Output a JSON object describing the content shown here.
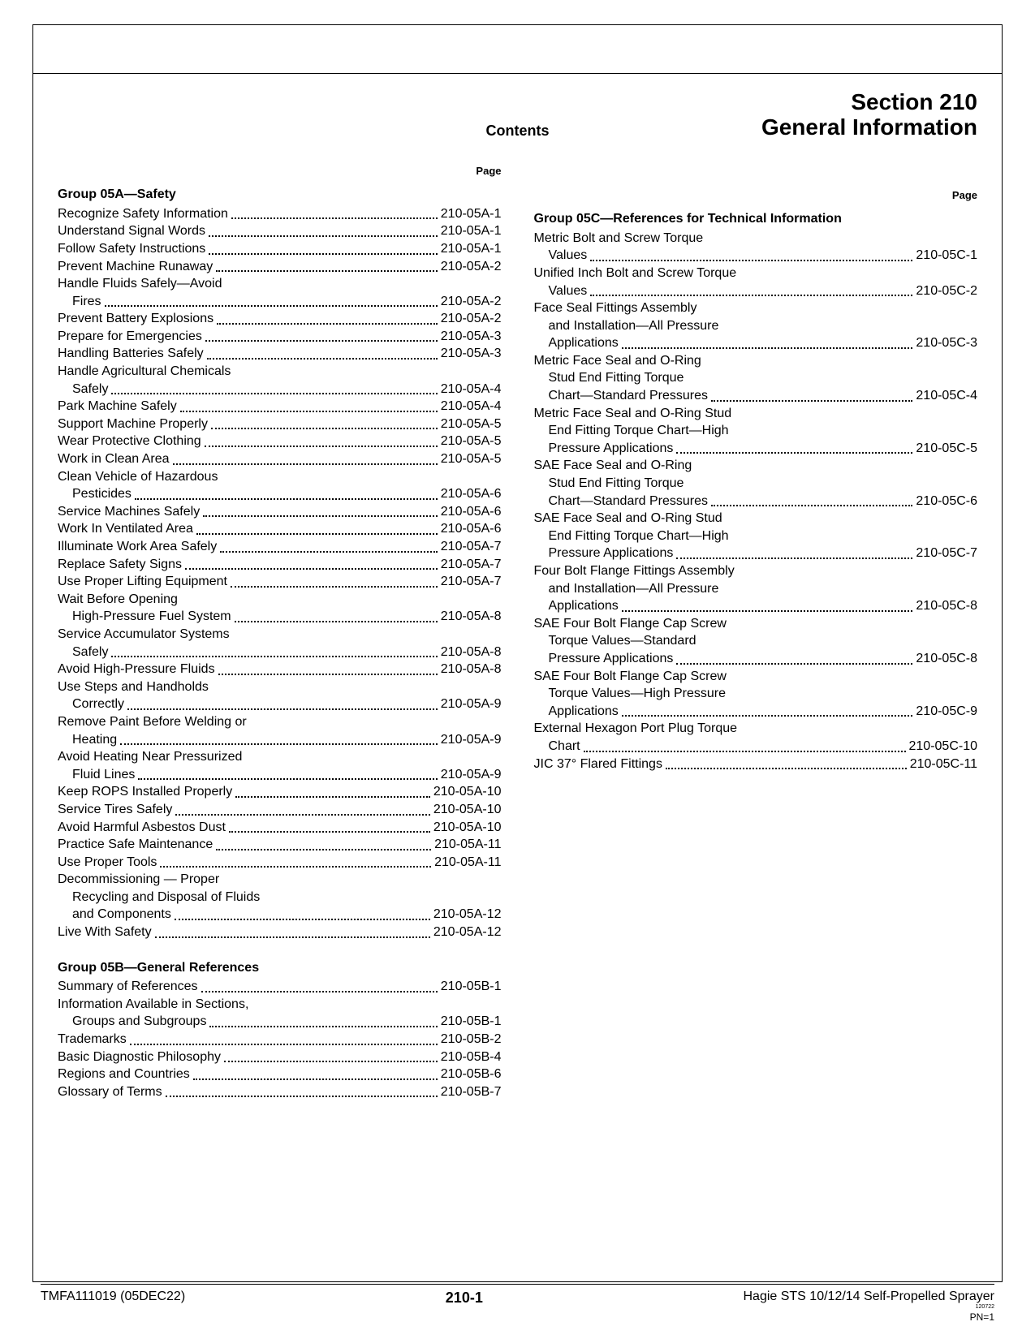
{
  "header": {
    "section_line1": "Section 210",
    "section_line2": "General Information",
    "contents_label": "Contents",
    "page_label": "Page"
  },
  "footer": {
    "left": "TMFA111019 (05DEC22)",
    "center": "210-1",
    "right": "Hagie STS 10/12/14 Self-Propelled Sprayer",
    "tiny": "120722",
    "pn": "PN=1"
  },
  "left_column": {
    "groups": [
      {
        "title": "Group 05A—Safety",
        "items": [
          {
            "lines": [
              "Recognize Safety Information"
            ],
            "page": "210-05A-1"
          },
          {
            "lines": [
              "Understand Signal Words"
            ],
            "page": "210-05A-1"
          },
          {
            "lines": [
              "Follow Safety Instructions"
            ],
            "page": "210-05A-1"
          },
          {
            "lines": [
              "Prevent Machine Runaway"
            ],
            "page": "210-05A-2"
          },
          {
            "lines": [
              "Handle Fluids Safely—Avoid",
              "Fires"
            ],
            "page": "210-05A-2"
          },
          {
            "lines": [
              "Prevent Battery Explosions"
            ],
            "page": "210-05A-2"
          },
          {
            "lines": [
              "Prepare for Emergencies"
            ],
            "page": "210-05A-3"
          },
          {
            "lines": [
              "Handling Batteries Safely"
            ],
            "page": "210-05A-3"
          },
          {
            "lines": [
              "Handle Agricultural Chemicals",
              "Safely"
            ],
            "page": "210-05A-4"
          },
          {
            "lines": [
              "Park Machine Safely"
            ],
            "page": "210-05A-4"
          },
          {
            "lines": [
              "Support Machine Properly"
            ],
            "page": "210-05A-5"
          },
          {
            "lines": [
              "Wear Protective Clothing"
            ],
            "page": "210-05A-5"
          },
          {
            "lines": [
              "Work in Clean Area"
            ],
            "page": "210-05A-5"
          },
          {
            "lines": [
              "Clean Vehicle of Hazardous",
              "Pesticides"
            ],
            "page": "210-05A-6"
          },
          {
            "lines": [
              "Service Machines Safely"
            ],
            "page": "210-05A-6"
          },
          {
            "lines": [
              "Work In Ventilated Area"
            ],
            "page": "210-05A-6"
          },
          {
            "lines": [
              "Illuminate Work Area Safely"
            ],
            "page": "210-05A-7"
          },
          {
            "lines": [
              "Replace Safety Signs"
            ],
            "page": "210-05A-7"
          },
          {
            "lines": [
              "Use Proper Lifting Equipment"
            ],
            "page": "210-05A-7"
          },
          {
            "lines": [
              "Wait Before Opening",
              "High-Pressure Fuel System"
            ],
            "page": "210-05A-8"
          },
          {
            "lines": [
              "Service Accumulator Systems",
              "Safely"
            ],
            "page": "210-05A-8"
          },
          {
            "lines": [
              "Avoid High-Pressure Fluids"
            ],
            "page": "210-05A-8"
          },
          {
            "lines": [
              "Use Steps and Handholds",
              "Correctly"
            ],
            "page": "210-05A-9"
          },
          {
            "lines": [
              "Remove Paint Before Welding or",
              "Heating"
            ],
            "page": "210-05A-9"
          },
          {
            "lines": [
              "Avoid Heating Near Pressurized",
              "Fluid Lines"
            ],
            "page": "210-05A-9"
          },
          {
            "lines": [
              "Keep ROPS Installed Properly"
            ],
            "page": "210-05A-10"
          },
          {
            "lines": [
              "Service Tires Safely"
            ],
            "page": "210-05A-10"
          },
          {
            "lines": [
              "Avoid Harmful Asbestos Dust"
            ],
            "page": "210-05A-10"
          },
          {
            "lines": [
              "Practice Safe Maintenance"
            ],
            "page": "210-05A-11"
          },
          {
            "lines": [
              "Use Proper Tools"
            ],
            "page": "210-05A-11"
          },
          {
            "lines": [
              "Decommissioning — Proper",
              "Recycling and Disposal of Fluids",
              "and Components"
            ],
            "page": "210-05A-12"
          },
          {
            "lines": [
              "Live With Safety"
            ],
            "page": "210-05A-12"
          }
        ]
      },
      {
        "title": "Group 05B—General References",
        "items": [
          {
            "lines": [
              "Summary of References"
            ],
            "page": "210-05B-1"
          },
          {
            "lines": [
              "Information Available in Sections,",
              "Groups and Subgroups"
            ],
            "page": "210-05B-1"
          },
          {
            "lines": [
              "Trademarks"
            ],
            "page": "210-05B-2"
          },
          {
            "lines": [
              "Basic Diagnostic Philosophy"
            ],
            "page": "210-05B-4"
          },
          {
            "lines": [
              "Regions and Countries"
            ],
            "page": "210-05B-6"
          },
          {
            "lines": [
              "Glossary of Terms"
            ],
            "page": "210-05B-7"
          }
        ]
      }
    ]
  },
  "right_column": {
    "groups": [
      {
        "title": "Group 05C—References for Technical Information",
        "items": [
          {
            "lines": [
              "Metric Bolt and Screw Torque",
              "Values"
            ],
            "page": "210-05C-1"
          },
          {
            "lines": [
              "Unified Inch Bolt and Screw Torque",
              "Values"
            ],
            "page": "210-05C-2"
          },
          {
            "lines": [
              "Face Seal Fittings Assembly",
              "and Installation—All Pressure",
              "Applications"
            ],
            "page": "210-05C-3"
          },
          {
            "lines": [
              "Metric Face Seal and O-Ring",
              "Stud End Fitting Torque",
              "Chart—Standard Pressures"
            ],
            "page": "210-05C-4"
          },
          {
            "lines": [
              "Metric Face Seal and O-Ring Stud",
              "End Fitting Torque Chart—High",
              "Pressure Applications"
            ],
            "page": "210-05C-5"
          },
          {
            "lines": [
              "SAE Face Seal and O-Ring",
              "Stud End Fitting Torque",
              "Chart—Standard Pressures"
            ],
            "page": "210-05C-6"
          },
          {
            "lines": [
              "SAE Face Seal and O-Ring Stud",
              "End Fitting Torque Chart—High",
              "Pressure Applications"
            ],
            "page": "210-05C-7"
          },
          {
            "lines": [
              "Four Bolt Flange Fittings Assembly",
              "and Installation—All Pressure",
              "Applications"
            ],
            "page": "210-05C-8"
          },
          {
            "lines": [
              "SAE Four Bolt Flange Cap Screw",
              "Torque Values—Standard",
              "Pressure Applications"
            ],
            "page": "210-05C-8"
          },
          {
            "lines": [
              "SAE Four Bolt Flange Cap Screw",
              "Torque Values—High Pressure",
              "Applications"
            ],
            "page": "210-05C-9"
          },
          {
            "lines": [
              "External Hexagon Port Plug Torque",
              "Chart"
            ],
            "page": "210-05C-10"
          },
          {
            "lines": [
              "JIC 37° Flared Fittings"
            ],
            "page": "210-05C-11"
          }
        ]
      }
    ]
  }
}
